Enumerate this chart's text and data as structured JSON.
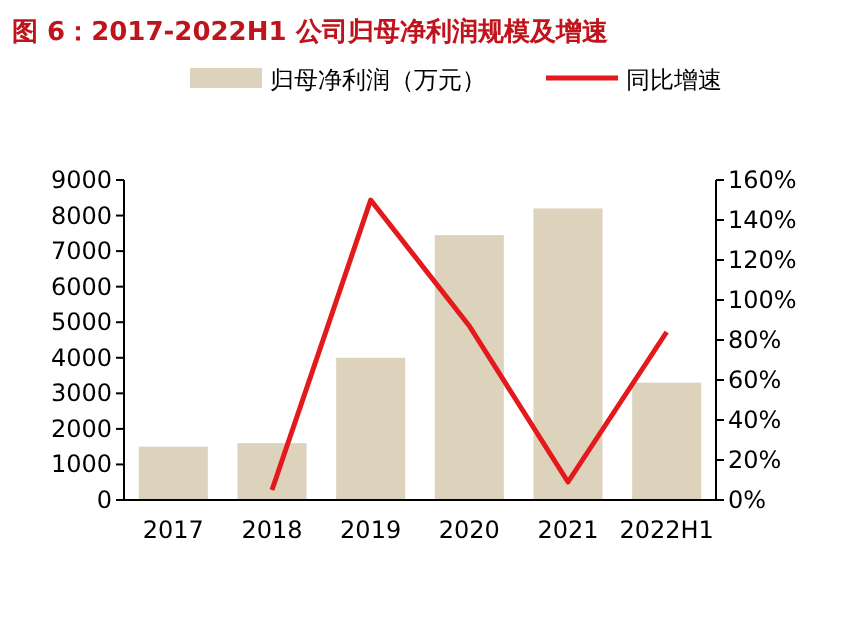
{
  "chart_data": {
    "type": "bar",
    "title": "图 6：2017-2022H1 公司归母净利润规模及增速",
    "categories": [
      "2017",
      "2018",
      "2019",
      "2020",
      "2021",
      "2022H1"
    ],
    "series": [
      {
        "name": "归母净利润（万元）",
        "type": "bar",
        "color": "#ddd3bd",
        "values": [
          1500,
          1600,
          4000,
          7450,
          8200,
          3300
        ]
      },
      {
        "name": "同比增速",
        "type": "line",
        "axis": "y2",
        "color": "#e3191c",
        "values": [
          null,
          5,
          150,
          87,
          9,
          84
        ]
      }
    ],
    "ylim": [
      0,
      9000
    ],
    "yticks": [
      0,
      1000,
      2000,
      3000,
      4000,
      5000,
      6000,
      7000,
      8000,
      9000
    ],
    "y2lim": [
      0,
      160
    ],
    "y2ticks": [
      {
        "value": 0,
        "label": "0%"
      },
      {
        "value": 20,
        "label": "20%"
      },
      {
        "value": 40,
        "label": "40%"
      },
      {
        "value": 60,
        "label": "60%"
      },
      {
        "value": 80,
        "label": "80%"
      },
      {
        "value": 100,
        "label": "100%"
      },
      {
        "value": 120,
        "label": "120%"
      },
      {
        "value": 140,
        "label": "140%"
      },
      {
        "value": 160,
        "label": "160%"
      }
    ],
    "legend": "top",
    "grid": false
  }
}
